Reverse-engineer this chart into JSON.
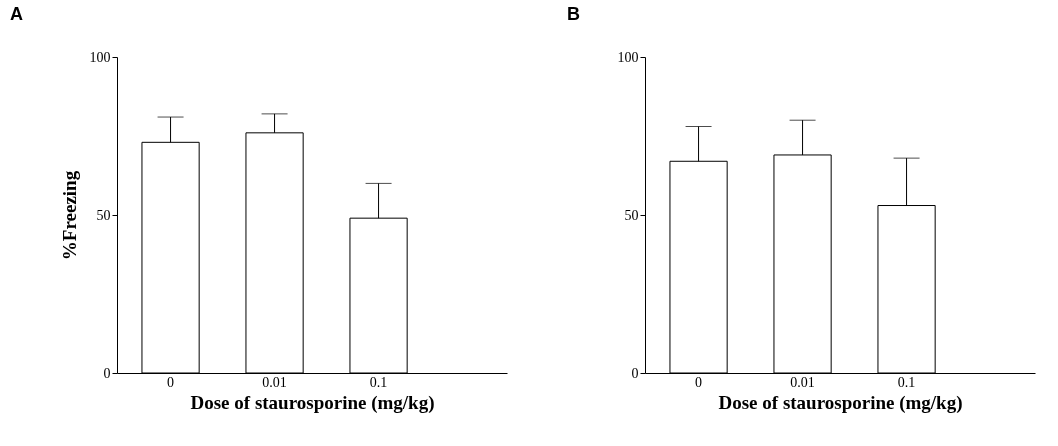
{
  "chart_data": [
    {
      "type": "bar",
      "title": "A",
      "xlabel": "Dose of staurosporine (mg/kg)",
      "ylabel": "%Freezing",
      "categories": [
        "0",
        "0.01",
        "0.1"
      ],
      "values": [
        73,
        76,
        49
      ],
      "errors": [
        [
          73,
          81
        ],
        [
          76,
          82
        ],
        [
          49,
          60
        ]
      ],
      "color": "#ffffff",
      "ylim": [
        0,
        100
      ],
      "yticks": [
        0,
        50,
        100
      ],
      "grid": false
    },
    {
      "type": "bar",
      "title": "B",
      "xlabel": "Dose of staurosporine (mg/kg)",
      "categories": [
        "0",
        "0.01",
        "0.1"
      ],
      "values": [
        67,
        69,
        53
      ],
      "errors": [
        [
          67,
          78
        ],
        [
          69,
          80
        ],
        [
          53,
          68
        ]
      ],
      "color": "#ffffff",
      "ylim": [
        0,
        100
      ],
      "yticks": [
        0,
        50,
        100
      ],
      "grid": false
    }
  ]
}
